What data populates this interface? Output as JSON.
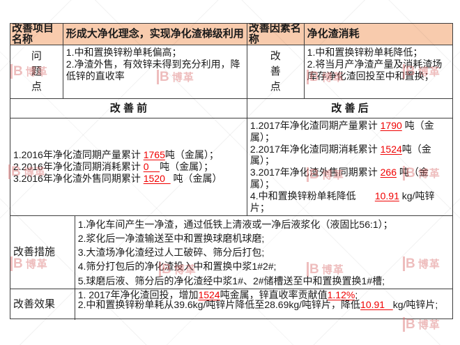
{
  "colors": {
    "header_bg": "#F8CBAD",
    "border": "#3d3d3d",
    "highlight_red": "#f00000",
    "watermark_pink": "rgba(214,98,98,0.42)"
  },
  "watermark": {
    "mark": "B",
    "brand": "博革"
  },
  "table": {
    "header": {
      "project_label": "改善项目名称",
      "project_value": "形成大净化理念，实现净化渣梯级利用",
      "factor_label": "改善因素名称",
      "factor_value": "净化渣消耗"
    },
    "problem": {
      "label": "问题点",
      "lines": [
        "1.中和置换锌粉单耗偏高；",
        "2.净渣外售，有效锌未得到充分利用，降低锌的直收率"
      ]
    },
    "improvement": {
      "label": "改善点",
      "lines": [
        "1.中和置换锌粉单耗降低；",
        "2.将当月产净渣产量及消耗渣场库存净化渣回投至中和置换；"
      ]
    },
    "before_after": {
      "before_title": "改 善 前",
      "after_title": "改 善 后",
      "before_lines": [
        [
          {
            "t": "1.2016年净化渣同期产量累计 "
          },
          {
            "t": "1765",
            "s": "rv"
          },
          {
            "t": "吨（金属）；"
          }
        ],
        [
          {
            "t": "2.2016年净化渣同期消耗累计 "
          },
          {
            "t": "0    ",
            "s": "rv"
          },
          {
            "t": "吨（金属）；"
          }
        ],
        [
          {
            "t": "3.2016年净化渣外售同期累计 "
          },
          {
            "t": "1520  ",
            "s": "rv"
          },
          {
            "t": " 吨（金属）"
          }
        ]
      ],
      "after_lines": [
        [
          {
            "t": "1.2017年净化渣同期产量累计 "
          },
          {
            "t": "1790",
            "s": "rv"
          },
          {
            "t": " 吨（金属）；"
          }
        ],
        [
          {
            "t": "2.2017年净化渣同期消耗累计 "
          },
          {
            "t": "1524",
            "s": "rv"
          },
          {
            "t": "吨（金属）；"
          }
        ],
        [
          {
            "t": "3.2017年净化渣外售同期累计 "
          },
          {
            "t": "266",
            "s": "rv"
          },
          {
            "t": " 吨（金属）；"
          }
        ],
        [
          {
            "t": "4.中和置换锌粉单耗降低       "
          },
          {
            "t": "10.91",
            "s": "rv"
          },
          {
            "t": " kg/吨锌片；"
          }
        ]
      ]
    },
    "measures": {
      "label": "改善措施",
      "lines": [
        "1.净化车间产生一净渣，通过低铁上清液或一净后液浆化（液固比56:1）；",
        "2.浆化后一净渣输送至中和置换球磨机球磨;",
        "3.大渣场净化渣经过人工破碎、筛分后打包;",
        "4.筛分打包后的净化渣投入中和置换中浆1#2#;",
        "5.球磨后液、筛分后的净化渣经中浆1#、2#储槽送至中和置换置换1#槽;"
      ]
    },
    "effects": {
      "label": "改善效果",
      "lines": [
        [
          {
            "t": "1. 2017年净化渣回投，增加"
          },
          {
            "t": "1524",
            "s": "rv"
          },
          {
            "t": "吨金属，锌直收率贡献值"
          },
          {
            "t": "1.12%",
            "s": "rv"
          },
          {
            "t": ";"
          }
        ],
        [
          {
            "t": "2.中和置换锌粉单耗从39.6kg/吨锌片降低至28.69kg/吨锌片，降低"
          },
          {
            "t": "10.91   ",
            "s": "rv"
          },
          {
            "t": "kg/吨锌片;"
          }
        ]
      ]
    }
  }
}
